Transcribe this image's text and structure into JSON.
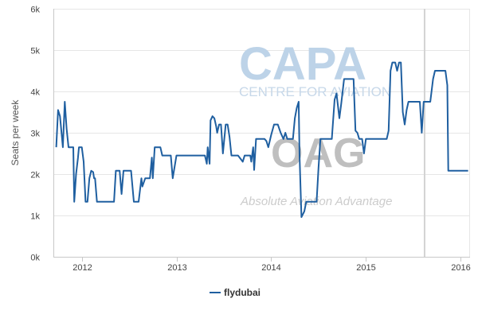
{
  "chart_data": {
    "type": "line",
    "ylabel": "Seats per week",
    "xlabel": "",
    "ylim": [
      0,
      6000
    ],
    "xlim": [
      2011.7,
      2016.1
    ],
    "grid": true,
    "legend_position": "bottom",
    "y_ticks": [
      {
        "value": 0,
        "label": "0k"
      },
      {
        "value": 1000,
        "label": "1k"
      },
      {
        "value": 2000,
        "label": "2k"
      },
      {
        "value": 3000,
        "label": "3k"
      },
      {
        "value": 4000,
        "label": "4k"
      },
      {
        "value": 5000,
        "label": "5k"
      },
      {
        "value": 6000,
        "label": "6k"
      }
    ],
    "x_ticks": [
      {
        "value": 2012,
        "label": "2012"
      },
      {
        "value": 2013,
        "label": "2013"
      },
      {
        "value": 2014,
        "label": "2014"
      },
      {
        "value": 2015,
        "label": "2015"
      },
      {
        "value": 2016,
        "label": "2016"
      }
    ],
    "reference_line_x": 2015.62,
    "series": [
      {
        "name": "flydubai",
        "color": "#1f5fa0",
        "points": [
          [
            2011.73,
            2650
          ],
          [
            2011.75,
            3550
          ],
          [
            2011.77,
            3400
          ],
          [
            2011.79,
            2900
          ],
          [
            2011.8,
            2650
          ],
          [
            2011.82,
            3750
          ],
          [
            2011.84,
            3100
          ],
          [
            2011.86,
            2650
          ],
          [
            2011.89,
            2650
          ],
          [
            2011.91,
            2650
          ],
          [
            2011.92,
            1330
          ],
          [
            2011.94,
            2000
          ],
          [
            2011.96,
            2400
          ],
          [
            2011.97,
            2650
          ],
          [
            2012.0,
            2650
          ],
          [
            2012.02,
            2300
          ],
          [
            2012.04,
            1330
          ],
          [
            2012.06,
            1330
          ],
          [
            2012.08,
            1900
          ],
          [
            2012.1,
            2080
          ],
          [
            2012.12,
            2050
          ],
          [
            2012.13,
            1900
          ],
          [
            2012.14,
            1900
          ],
          [
            2012.16,
            1330
          ],
          [
            2012.3,
            1330
          ],
          [
            2012.32,
            1330
          ],
          [
            2012.34,
            1330
          ],
          [
            2012.36,
            2080
          ],
          [
            2012.4,
            2080
          ],
          [
            2012.42,
            1520
          ],
          [
            2012.44,
            2080
          ],
          [
            2012.52,
            2080
          ],
          [
            2012.55,
            1330
          ],
          [
            2012.6,
            1330
          ],
          [
            2012.63,
            1900
          ],
          [
            2012.64,
            1700
          ],
          [
            2012.67,
            1900
          ],
          [
            2012.72,
            1900
          ],
          [
            2012.74,
            2400
          ],
          [
            2012.75,
            1900
          ],
          [
            2012.77,
            2650
          ],
          [
            2012.83,
            2650
          ],
          [
            2012.85,
            2450
          ],
          [
            2012.94,
            2450
          ],
          [
            2012.96,
            1900
          ],
          [
            2013.0,
            2450
          ],
          [
            2013.3,
            2450
          ],
          [
            2013.32,
            2250
          ],
          [
            2013.33,
            2650
          ],
          [
            2013.35,
            2250
          ],
          [
            2013.36,
            3300
          ],
          [
            2013.38,
            3400
          ],
          [
            2013.4,
            3350
          ],
          [
            2013.42,
            3150
          ],
          [
            2013.43,
            3000
          ],
          [
            2013.45,
            3200
          ],
          [
            2013.47,
            3200
          ],
          [
            2013.49,
            2500
          ],
          [
            2013.52,
            3200
          ],
          [
            2013.54,
            3200
          ],
          [
            2013.56,
            2900
          ],
          [
            2013.58,
            2450
          ],
          [
            2013.65,
            2450
          ],
          [
            2013.7,
            2300
          ],
          [
            2013.72,
            2450
          ],
          [
            2013.78,
            2450
          ],
          [
            2013.79,
            2300
          ],
          [
            2013.81,
            2650
          ],
          [
            2013.82,
            2100
          ],
          [
            2013.84,
            2850
          ],
          [
            2013.93,
            2850
          ],
          [
            2013.95,
            2800
          ],
          [
            2013.97,
            2650
          ],
          [
            2014.0,
            2950
          ],
          [
            2014.03,
            3200
          ],
          [
            2014.07,
            3200
          ],
          [
            2014.1,
            3000
          ],
          [
            2014.13,
            2850
          ],
          [
            2014.15,
            3000
          ],
          [
            2014.17,
            2850
          ],
          [
            2014.23,
            2850
          ],
          [
            2014.25,
            3350
          ],
          [
            2014.27,
            3600
          ],
          [
            2014.29,
            3750
          ],
          [
            2014.3,
            2450
          ],
          [
            2014.32,
            960
          ],
          [
            2014.35,
            1100
          ],
          [
            2014.37,
            1330
          ],
          [
            2014.48,
            1330
          ],
          [
            2014.5,
            2150
          ],
          [
            2014.52,
            2850
          ],
          [
            2014.64,
            2850
          ],
          [
            2014.67,
            3800
          ],
          [
            2014.69,
            3950
          ],
          [
            2014.72,
            3350
          ],
          [
            2014.74,
            3700
          ],
          [
            2014.77,
            4300
          ],
          [
            2014.87,
            4300
          ],
          [
            2014.89,
            3050
          ],
          [
            2014.91,
            3000
          ],
          [
            2014.93,
            2850
          ],
          [
            2014.96,
            2850
          ],
          [
            2014.98,
            2500
          ],
          [
            2015.0,
            2850
          ],
          [
            2015.03,
            2850
          ],
          [
            2015.22,
            2850
          ],
          [
            2015.24,
            3050
          ],
          [
            2015.26,
            4500
          ],
          [
            2015.28,
            4700
          ],
          [
            2015.31,
            4700
          ],
          [
            2015.33,
            4500
          ],
          [
            2015.35,
            4700
          ],
          [
            2015.37,
            4700
          ],
          [
            2015.39,
            3500
          ],
          [
            2015.41,
            3200
          ],
          [
            2015.43,
            3550
          ],
          [
            2015.45,
            3750
          ],
          [
            2015.55,
            3750
          ],
          [
            2015.57,
            3750
          ],
          [
            2015.59,
            3000
          ],
          [
            2015.61,
            3750
          ],
          [
            2015.68,
            3750
          ],
          [
            2015.71,
            4300
          ],
          [
            2015.73,
            4500
          ],
          [
            2015.84,
            4500
          ],
          [
            2015.86,
            4150
          ],
          [
            2015.87,
            2080
          ],
          [
            2016.08,
            2080
          ]
        ]
      }
    ]
  },
  "watermarks": {
    "capa_title": "CAPA",
    "capa_subtitle": "CENTRE FOR AVIATION",
    "oag_title": "OAG",
    "oag_tagline": "Absolute Aviation Advantage"
  }
}
